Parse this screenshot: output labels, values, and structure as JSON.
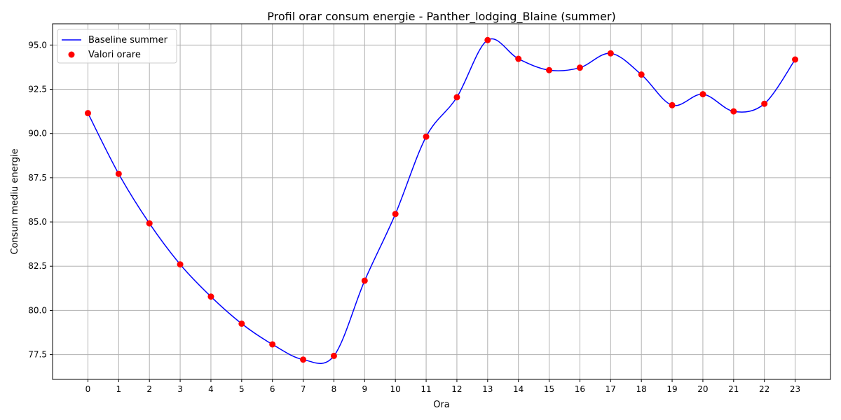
{
  "chart_data": {
    "type": "line",
    "title": "Profil orar consum energie - Panther_lodging_Blaine (summer)",
    "xlabel": "Ora",
    "ylabel": "Consum mediu energie",
    "x": [
      0,
      1,
      2,
      3,
      4,
      5,
      6,
      7,
      8,
      9,
      10,
      11,
      12,
      13,
      14,
      15,
      16,
      17,
      18,
      19,
      20,
      21,
      22,
      23
    ],
    "x_tick_labels": [
      "0",
      "1",
      "2",
      "3",
      "4",
      "5",
      "6",
      "7",
      "8",
      "9",
      "10",
      "11",
      "12",
      "13",
      "14",
      "15",
      "16",
      "17",
      "18",
      "19",
      "20",
      "21",
      "22",
      "23"
    ],
    "xlim": [
      -1.15,
      24.15
    ],
    "ylim": [
      76.1,
      96.2
    ],
    "y_ticks": [
      77.5,
      80.0,
      82.5,
      85.0,
      87.5,
      90.0,
      92.5,
      95.0
    ],
    "y_tick_labels": [
      "77.5",
      "80.0",
      "82.5",
      "85.0",
      "87.5",
      "90.0",
      "92.5",
      "95.0"
    ],
    "grid": true,
    "legend_position": "top-left",
    "series": [
      {
        "name": "Baseline summer",
        "kind": "line",
        "color": "#0000ff",
        "values": [
          91.15,
          87.72,
          84.92,
          82.6,
          80.78,
          79.25,
          78.08,
          77.22,
          77.43,
          81.68,
          85.45,
          89.82,
          92.05,
          95.28,
          94.22,
          93.58,
          93.72,
          94.53,
          93.33,
          91.6,
          92.22,
          91.25,
          91.68,
          94.18
        ]
      },
      {
        "name": "Valori orare",
        "kind": "scatter",
        "color": "#ff0000",
        "values": [
          91.15,
          87.72,
          84.92,
          82.6,
          80.78,
          79.25,
          78.08,
          77.22,
          77.43,
          81.68,
          85.45,
          89.82,
          92.05,
          95.28,
          94.22,
          93.58,
          93.72,
          94.53,
          93.33,
          91.6,
          92.22,
          91.25,
          91.68,
          94.18
        ]
      }
    ]
  }
}
